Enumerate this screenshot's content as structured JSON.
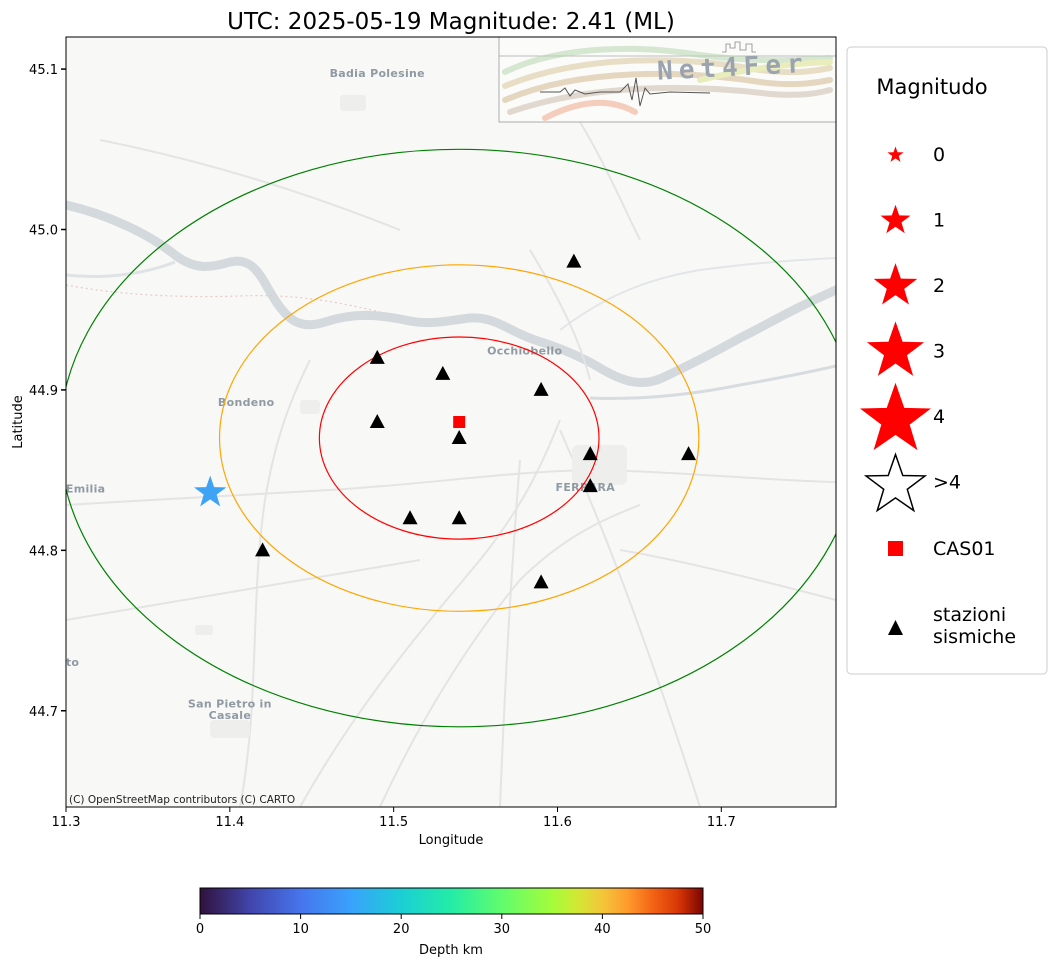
{
  "title": "UTC: 2025-05-19 Magnitude: 2.41 (ML)",
  "map": {
    "xlabel": "Longitude",
    "ylabel": "Latitude",
    "xlim": [
      11.3,
      11.77
    ],
    "ylim": [
      44.64,
      45.12
    ],
    "xticks": [
      {
        "value": 11.3,
        "label": "11.3"
      },
      {
        "value": 11.4,
        "label": "11.4"
      },
      {
        "value": 11.5,
        "label": "11.5"
      },
      {
        "value": 11.6,
        "label": "11.6"
      },
      {
        "value": 11.7,
        "label": "11.7"
      }
    ],
    "yticks": [
      {
        "value": 44.7,
        "label": "44.7"
      },
      {
        "value": 44.8,
        "label": "44.8"
      },
      {
        "value": 44.9,
        "label": "44.9"
      },
      {
        "value": 45.0,
        "label": "45.0"
      },
      {
        "value": 45.1,
        "label": "45.1"
      }
    ],
    "place_labels": [
      {
        "name": "Badia Polesine",
        "lon": 11.49,
        "lat": 45.095
      },
      {
        "name": "Occhiobello",
        "lon": 11.58,
        "lat": 44.922
      },
      {
        "name": "Bondeno",
        "lon": 11.41,
        "lat": 44.89
      },
      {
        "name": "FERRARA",
        "lon": 11.617,
        "lat": 44.837
      },
      {
        "name": "Emilia",
        "lon": 11.312,
        "lat": 44.836
      },
      {
        "name": "San Pietro in",
        "lon": 11.4,
        "lat": 44.702
      },
      {
        "name": "Casale",
        "lon": 11.4,
        "lat": 44.695
      },
      {
        "name": "to",
        "lon": 11.304,
        "lat": 44.728
      }
    ],
    "attribution": "(C) OpenStreetMap contributors (C) CARTO",
    "logo_text": "Net4Fer",
    "station_name": "CAS01",
    "station": {
      "lon": 11.54,
      "lat": 44.88,
      "color": "#ff0000"
    },
    "ring_center": {
      "lon": 11.54,
      "lat": 44.87
    },
    "rings": [
      {
        "radius_deg_lat": 0.063,
        "color": "#ff0000"
      },
      {
        "radius_deg_lat": 0.108,
        "color": "#ffa500"
      },
      {
        "radius_deg_lat": 0.18,
        "color": "#008000"
      }
    ],
    "event": {
      "lon": 11.388,
      "lat": 44.836,
      "magnitude": 2.41,
      "depth_km": 9,
      "color": "#3ea2f5"
    },
    "seismic_stations": [
      {
        "lon": 11.61,
        "lat": 44.98
      },
      {
        "lon": 11.49,
        "lat": 44.92
      },
      {
        "lon": 11.53,
        "lat": 44.91
      },
      {
        "lon": 11.59,
        "lat": 44.9
      },
      {
        "lon": 11.49,
        "lat": 44.88
      },
      {
        "lon": 11.54,
        "lat": 44.87
      },
      {
        "lon": 11.62,
        "lat": 44.86
      },
      {
        "lon": 11.68,
        "lat": 44.86
      },
      {
        "lon": 11.62,
        "lat": 44.84
      },
      {
        "lon": 11.51,
        "lat": 44.82
      },
      {
        "lon": 11.54,
        "lat": 44.82
      },
      {
        "lon": 11.42,
        "lat": 44.8
      },
      {
        "lon": 11.59,
        "lat": 44.78
      }
    ]
  },
  "legend": {
    "title": "Magnitudo",
    "magnitude_entries": [
      {
        "label": "0",
        "magnitude": 0
      },
      {
        "label": "1",
        "magnitude": 1
      },
      {
        "label": "2",
        "magnitude": 2
      },
      {
        "label": "3",
        "magnitude": 3
      },
      {
        "label": "4",
        "magnitude": 4
      },
      {
        "label": ">4",
        "magnitude": 5
      }
    ],
    "station_label": "CAS01",
    "seismic_label_line1": "stazioni",
    "seismic_label_line2": "sismiche",
    "marker_color": "#ff0000"
  },
  "colorbar": {
    "label": "Depth km",
    "min": 0,
    "max": 50,
    "ticks": [
      "0",
      "10",
      "20",
      "30",
      "40",
      "50"
    ],
    "colormap": "turbo"
  }
}
